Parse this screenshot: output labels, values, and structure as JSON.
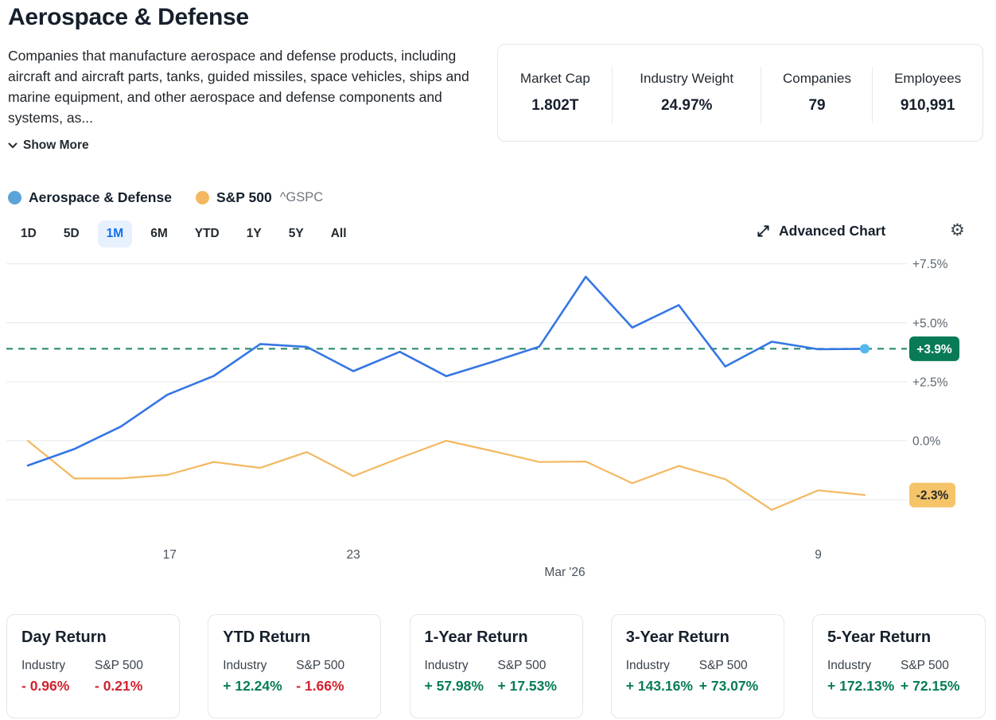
{
  "header": {
    "title": "Aerospace & Defense",
    "description": "Companies that manufacture aerospace and defense products, including aircraft and aircraft parts, tanks, guided missiles, space vehicles, ships and marine equipment, and other aerospace and defense components and systems, as...",
    "show_more": "Show More"
  },
  "stats": {
    "items": [
      {
        "label": "Market Cap",
        "value": "1.802T"
      },
      {
        "label": "Industry Weight",
        "value": "24.97%"
      },
      {
        "label": "Companies",
        "value": "79"
      },
      {
        "label": "Employees",
        "value": "910,991"
      }
    ]
  },
  "legend": {
    "series": [
      {
        "label": "Aerospace & Defense",
        "dot_color": "#5ba3d9"
      },
      {
        "label": "S&P 500",
        "ticker": "^GSPC",
        "dot_color": "#f3b860"
      }
    ]
  },
  "range_tabs": {
    "items": [
      "1D",
      "5D",
      "1M",
      "6M",
      "YTD",
      "1Y",
      "5Y",
      "All"
    ],
    "active": "1M"
  },
  "toolbar": {
    "advanced_chart": "Advanced Chart"
  },
  "chart_data": {
    "type": "line",
    "unit": "percent-return",
    "ylim": [
      -4.2,
      8.3
    ],
    "grid": true,
    "legend_position": "top-left",
    "y_gridlines": [
      {
        "value": 7.5,
        "label": "+7.5%"
      },
      {
        "value": 5.0,
        "label": "+5.0%"
      },
      {
        "value": 2.5,
        "label": "+2.5%"
      },
      {
        "value": 0.0,
        "label": "0.0%"
      },
      {
        "value": -2.5,
        "label": ""
      }
    ],
    "series": [
      {
        "name": "S&P 500",
        "color": "#f3b860",
        "width": 2.2,
        "end_dot": false,
        "values": [
          0.0,
          -1.6,
          -1.6,
          -1.45,
          -0.9,
          -1.15,
          -0.48,
          -1.5,
          -0.73,
          0.0,
          -0.44,
          -0.9,
          -0.88,
          -1.8,
          -1.07,
          -1.63,
          -2.93,
          -2.1,
          -2.3
        ]
      },
      {
        "name": "Aerospace & Defense",
        "color": "#3576e4",
        "width": 2.6,
        "end_dot": true,
        "end_dot_color": "#54b9ef",
        "values": [
          -1.05,
          -0.35,
          0.6,
          1.95,
          2.75,
          4.1,
          3.98,
          2.95,
          3.77,
          2.74,
          3.35,
          3.99,
          6.95,
          4.8,
          5.75,
          3.15,
          4.2,
          3.88,
          3.9
        ]
      }
    ],
    "current_value_lines": [
      {
        "value": 3.9,
        "label": "+3.9%",
        "dashed": true,
        "line_color": "#1f8468",
        "badge_bg": "#087a58",
        "badge_text": "#ffffff",
        "badge_w": 63
      },
      {
        "value": -2.3,
        "label": "-2.3%",
        "dashed": false,
        "badge_bg": "#f5c469",
        "badge_text": "#26282a",
        "badge_w": 58
      }
    ],
    "x_ticks": [
      {
        "label": "17",
        "i": 3.05,
        "row": 1
      },
      {
        "label": "23",
        "i": 7.0,
        "row": 1
      },
      {
        "label": "Mar '26",
        "i": 11.55,
        "row": 2
      },
      {
        "label": "9",
        "i": 17.0,
        "row": 1
      }
    ]
  },
  "returns_cards": [
    {
      "title": "Day Return",
      "industry_label": "Industry",
      "sp_label": "S&P 500",
      "industry_value": "- 0.96%",
      "industry_dir": "neg",
      "sp_value": "- 0.21%",
      "sp_dir": "neg"
    },
    {
      "title": "YTD Return",
      "industry_label": "Industry",
      "sp_label": "S&P 500",
      "industry_value": "+ 12.24%",
      "industry_dir": "pos",
      "sp_value": "- 1.66%",
      "sp_dir": "neg"
    },
    {
      "title": "1-Year Return",
      "industry_label": "Industry",
      "sp_label": "S&P 500",
      "industry_value": "+ 57.98%",
      "industry_dir": "pos",
      "sp_value": "+ 17.53%",
      "sp_dir": "pos"
    },
    {
      "title": "3-Year Return",
      "industry_label": "Industry",
      "sp_label": "S&P 500",
      "industry_value": "+ 143.16%",
      "industry_dir": "pos",
      "sp_value": "+ 73.07%",
      "sp_dir": "pos"
    },
    {
      "title": "5-Year Return",
      "industry_label": "Industry",
      "sp_label": "S&P 500",
      "industry_value": "+ 172.13%",
      "industry_dir": "pos",
      "sp_value": "+ 72.15%",
      "sp_dir": "pos"
    }
  ],
  "colors": {
    "grid": "#e6e8ea",
    "y_label": "#5d6670",
    "x_label": "#49525b",
    "positive": "#077c57",
    "negative": "#d2232f",
    "tab_active_bg": "#e7f1fe",
    "tab_active_text": "#1370e8"
  }
}
